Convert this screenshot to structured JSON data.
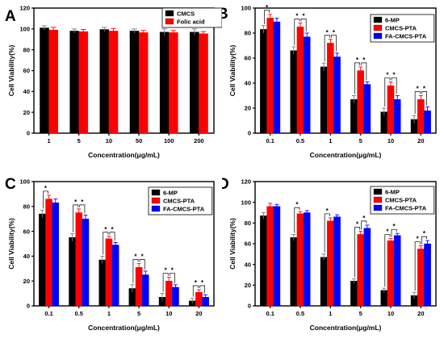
{
  "chart_data": [
    {
      "panel": "A",
      "type": "bar",
      "xlabel": "Concentration(μg/mL)",
      "ylabel": "Cell Viability(%)",
      "ylim": [
        0,
        120
      ],
      "yticks": [
        0,
        20,
        40,
        60,
        80,
        100,
        120
      ],
      "categories": [
        "1",
        "5",
        "10",
        "50",
        "100",
        "200"
      ],
      "legend_position": "top-right",
      "series": [
        {
          "name": "CMCS",
          "color": "#000000",
          "values": [
            101,
            98,
            99.5,
            98,
            97,
            97
          ],
          "errors": [
            2,
            2,
            2,
            2,
            3,
            3
          ]
        },
        {
          "name": "Folic acid",
          "color": "#ff0000",
          "values": [
            99,
            97.5,
            98,
            96.5,
            96.5,
            95.5
          ],
          "errors": [
            2.5,
            2,
            2.5,
            2,
            2,
            2
          ]
        }
      ],
      "significance": []
    },
    {
      "panel": "B",
      "type": "bar",
      "xlabel": "Concentration(μg/mL)",
      "ylabel": "Cell Viability(%)",
      "ylim": [
        0,
        100
      ],
      "yticks": [
        0,
        20,
        40,
        60,
        80,
        100
      ],
      "categories": [
        "0.1",
        "0.5",
        "1",
        "5",
        "10",
        "20"
      ],
      "legend_position": "top-right",
      "series": [
        {
          "name": "6-MP",
          "color": "#000000",
          "values": [
            83,
            66,
            53,
            27,
            17,
            11
          ],
          "errors": [
            3,
            3,
            3,
            3,
            3,
            3
          ]
        },
        {
          "name": "CMCS-PTA",
          "color": "#ff0000",
          "values": [
            92,
            85,
            72,
            50,
            38,
            27
          ],
          "errors": [
            3,
            3,
            3,
            3,
            3,
            3
          ]
        },
        {
          "name": "FA-CMCS-PTA",
          "color": "#0000ff",
          "values": [
            89,
            77,
            61,
            39,
            27,
            18
          ],
          "errors": [
            3,
            3,
            3,
            2,
            3,
            3
          ]
        }
      ],
      "significance": [
        {
          "category": 0,
          "pairs": [
            [
              0,
              1
            ]
          ],
          "label": "*"
        },
        {
          "category": 1,
          "pairs": [
            [
              0,
              1
            ],
            [
              1,
              2
            ]
          ],
          "label": "*"
        },
        {
          "category": 2,
          "pairs": [
            [
              0,
              1
            ],
            [
              1,
              2
            ]
          ],
          "label": "*"
        },
        {
          "category": 3,
          "pairs": [
            [
              0,
              1
            ],
            [
              1,
              2
            ]
          ],
          "label": "*"
        },
        {
          "category": 4,
          "pairs": [
            [
              0,
              1
            ],
            [
              1,
              2
            ]
          ],
          "label": "*"
        },
        {
          "category": 5,
          "pairs": [
            [
              0,
              1
            ],
            [
              1,
              2
            ]
          ],
          "label": "*"
        }
      ]
    },
    {
      "panel": "C",
      "type": "bar",
      "xlabel": "Concentration(μg/mL)",
      "ylabel": "Cell Viability(%)",
      "ylim": [
        0,
        100
      ],
      "yticks": [
        0,
        20,
        40,
        60,
        80,
        100
      ],
      "categories": [
        "0.1",
        "0.5",
        "1",
        "5",
        "10",
        "20"
      ],
      "legend_position": "top-right",
      "series": [
        {
          "name": "6-MP",
          "color": "#000000",
          "values": [
            74,
            55,
            37,
            14,
            7,
            4
          ],
          "errors": [
            3,
            3,
            3,
            3,
            3,
            2
          ]
        },
        {
          "name": "CMCS-PTA",
          "color": "#ff0000",
          "values": [
            86,
            75,
            54,
            31,
            20,
            11
          ],
          "errors": [
            3,
            3,
            2,
            3,
            3,
            2
          ]
        },
        {
          "name": "FA-CMCS-PTA",
          "color": "#0000ff",
          "values": [
            83,
            70,
            49,
            25,
            15,
            7
          ],
          "errors": [
            3,
            3,
            2,
            3,
            2,
            2
          ]
        }
      ],
      "significance": [
        {
          "category": 0,
          "pairs": [
            [
              0,
              1
            ]
          ],
          "label": "*"
        },
        {
          "category": 1,
          "pairs": [
            [
              0,
              1
            ],
            [
              1,
              2
            ]
          ],
          "label": "*"
        },
        {
          "category": 2,
          "pairs": [
            [
              0,
              1
            ],
            [
              1,
              2
            ]
          ],
          "label": "*"
        },
        {
          "category": 3,
          "pairs": [
            [
              0,
              1
            ],
            [
              1,
              2
            ]
          ],
          "label": "*"
        },
        {
          "category": 4,
          "pairs": [
            [
              0,
              1
            ],
            [
              1,
              2
            ]
          ],
          "label": "*"
        },
        {
          "category": 5,
          "pairs": [
            [
              0,
              1
            ],
            [
              1,
              2
            ]
          ],
          "label": "*"
        }
      ]
    },
    {
      "panel": "D",
      "type": "bar",
      "xlabel": "Concentration(μg/mL)",
      "ylabel": "Cell Viability(%)",
      "ylim": [
        0,
        120
      ],
      "yticks": [
        0,
        20,
        40,
        60,
        80,
        100,
        120
      ],
      "categories": [
        "0.1",
        "0.5",
        "1",
        "5",
        "10",
        "20"
      ],
      "legend_position": "top-right",
      "series": [
        {
          "name": "6-MP",
          "color": "#000000",
          "values": [
            87,
            66,
            47,
            24,
            15,
            10
          ],
          "errors": [
            3,
            3,
            3,
            2,
            2,
            3
          ]
        },
        {
          "name": "CMCS-PTA",
          "color": "#ff0000",
          "values": [
            96,
            89,
            82,
            69,
            63,
            55
          ],
          "errors": [
            3,
            2,
            3,
            3,
            2,
            3
          ]
        },
        {
          "name": "FA-CMCS-PTA",
          "color": "#0000ff",
          "values": [
            96,
            90,
            86,
            75,
            68,
            60
          ],
          "errors": [
            2,
            2,
            2,
            3,
            2,
            3
          ]
        }
      ],
      "significance": [
        {
          "category": 1,
          "pairs": [
            [
              0,
              1
            ]
          ],
          "label": "*"
        },
        {
          "category": 2,
          "pairs": [
            [
              0,
              1
            ]
          ],
          "label": "*"
        },
        {
          "category": 3,
          "pairs": [
            [
              0,
              1
            ],
            [
              1,
              2
            ]
          ],
          "label": "*"
        },
        {
          "category": 4,
          "pairs": [
            [
              0,
              1
            ],
            [
              1,
              2
            ]
          ],
          "label": "*"
        },
        {
          "category": 5,
          "pairs": [
            [
              0,
              1
            ],
            [
              1,
              2
            ]
          ],
          "label": "*"
        }
      ]
    }
  ]
}
